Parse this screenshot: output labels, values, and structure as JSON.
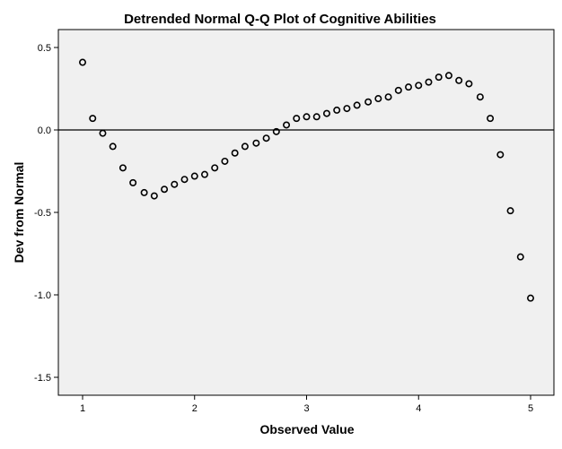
{
  "chart_data": {
    "type": "scatter",
    "title": "Detrended Normal Q-Q Plot of Cognitive Abilities",
    "xlabel": "Observed Value",
    "ylabel": "Dev from Normal",
    "xlim": [
      0.75,
      5.25
    ],
    "ylim": [
      -1.6,
      0.6
    ],
    "xticks": [
      1,
      2,
      3,
      4,
      5
    ],
    "xtick_labels": [
      "1",
      "2",
      "3",
      "4",
      "5"
    ],
    "yticks": [
      0.5,
      0.0,
      -0.5,
      -1.0,
      -1.5
    ],
    "ytick_labels": [
      "0.5",
      "0.0",
      "-0.5",
      "-1.0",
      "-1.5"
    ],
    "reference_line_y": 0.0,
    "grid": false,
    "plot_background": "#f0f0f0",
    "marker_color": "#000000",
    "x": [
      1.0,
      1.09,
      1.18,
      1.27,
      1.36,
      1.45,
      1.55,
      1.64,
      1.73,
      1.82,
      1.91,
      2.0,
      2.09,
      2.18,
      2.27,
      2.36,
      2.45,
      2.55,
      2.64,
      2.73,
      2.82,
      2.91,
      3.0,
      3.09,
      3.18,
      3.27,
      3.36,
      3.45,
      3.55,
      3.64,
      3.73,
      3.82,
      3.91,
      4.0,
      4.09,
      4.18,
      4.27,
      4.36,
      4.45,
      4.55,
      4.64,
      4.73,
      4.82,
      4.91,
      5.0
    ],
    "y": [
      0.41,
      0.07,
      -0.02,
      -0.1,
      -0.23,
      -0.32,
      -0.38,
      -0.4,
      -0.36,
      -0.33,
      -0.3,
      -0.28,
      -0.27,
      -0.23,
      -0.19,
      -0.14,
      -0.1,
      -0.08,
      -0.05,
      -0.01,
      0.03,
      0.07,
      0.08,
      0.08,
      0.1,
      0.12,
      0.13,
      0.15,
      0.17,
      0.19,
      0.2,
      0.24,
      0.26,
      0.27,
      0.29,
      0.32,
      0.33,
      0.3,
      0.28,
      0.2,
      0.07,
      -0.15,
      -0.49,
      -0.77,
      -1.02
    ]
  }
}
